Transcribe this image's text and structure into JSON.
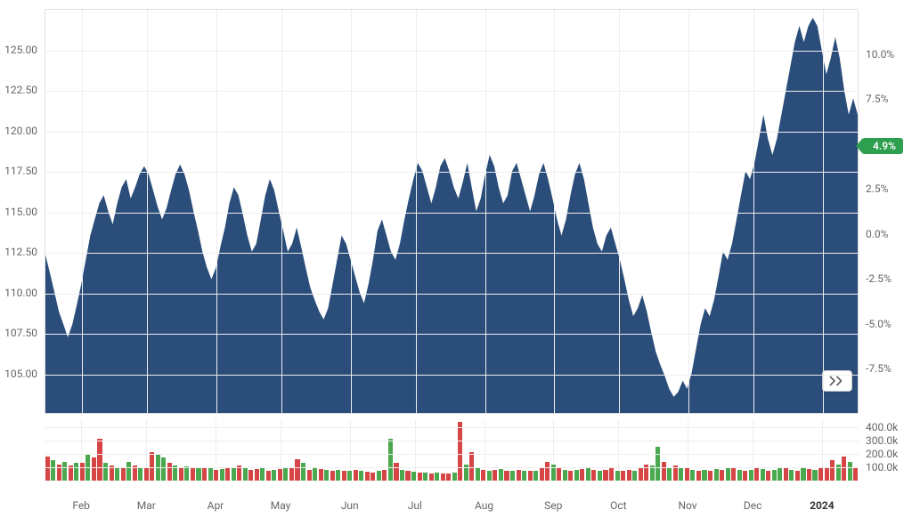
{
  "price_chart": {
    "type": "area",
    "area_color": "#2a4d7a",
    "background_color": "#ffffff",
    "grid_color": "#eeeeee",
    "border_color": "#e0e0e0",
    "y_left": {
      "min": 102.5,
      "max": 127.5,
      "ticks": [
        105.0,
        107.5,
        110.0,
        112.5,
        115.0,
        117.5,
        120.0,
        122.5,
        125.0
      ],
      "label_fontsize": 12,
      "label_color": "#666666"
    },
    "y_right": {
      "min": -10.0,
      "max": 12.5,
      "ticks": [
        -7.5,
        -5.0,
        -2.5,
        0.0,
        2.5,
        5.0,
        7.5,
        10.0
      ],
      "tick_labels": [
        "-7.5%",
        "-5.0%",
        "-2.5%",
        "0.0%",
        "2.5%",
        "5.0%",
        "7.5%",
        "10.0%"
      ],
      "label_fontsize": 12,
      "label_color": "#666666"
    },
    "x_axis": {
      "labels": [
        "Feb",
        "Mar",
        "Apr",
        "May",
        "Jun",
        "Jul",
        "Aug",
        "Sep",
        "Oct",
        "Nov",
        "Dec",
        "2024"
      ],
      "positions_pct": [
        4.5,
        12.5,
        21.0,
        29.0,
        37.5,
        45.5,
        54.0,
        62.5,
        70.5,
        79.0,
        87.0,
        95.5
      ],
      "bold_indices": [
        11
      ],
      "label_fontsize": 12,
      "label_color": "#666666"
    },
    "series": [
      112.3,
      111.2,
      110.0,
      108.8,
      108.0,
      107.2,
      108.0,
      109.2,
      110.5,
      112.0,
      113.5,
      114.5,
      115.5,
      116.0,
      115.0,
      114.2,
      115.5,
      116.5,
      117.0,
      115.8,
      116.5,
      117.3,
      117.8,
      117.3,
      116.3,
      115.3,
      114.5,
      115.2,
      116.3,
      117.3,
      117.9,
      117.3,
      116.3,
      115.0,
      113.8,
      112.5,
      111.5,
      110.8,
      111.5,
      112.8,
      114.0,
      115.5,
      116.5,
      116.0,
      114.8,
      113.5,
      112.5,
      113.0,
      114.5,
      116.0,
      117.0,
      116.3,
      115.0,
      113.8,
      112.5,
      113.0,
      114.0,
      112.8,
      111.5,
      110.3,
      109.5,
      108.8,
      108.3,
      109.0,
      110.5,
      112.0,
      113.5,
      113.0,
      112.0,
      111.0,
      110.0,
      109.3,
      110.5,
      112.0,
      113.8,
      114.5,
      113.5,
      112.5,
      112.0,
      113.0,
      114.5,
      115.8,
      117.0,
      118.0,
      117.5,
      116.5,
      115.5,
      116.5,
      117.8,
      118.3,
      117.5,
      116.5,
      115.8,
      116.8,
      118.0,
      116.5,
      115.0,
      115.8,
      117.3,
      118.5,
      117.8,
      116.5,
      115.5,
      116.0,
      117.5,
      118.0,
      117.0,
      116.0,
      115.0,
      116.0,
      117.3,
      118.0,
      117.0,
      115.8,
      114.5,
      113.5,
      114.5,
      116.0,
      117.3,
      118.0,
      117.0,
      115.5,
      114.0,
      113.0,
      112.5,
      113.5,
      114.0,
      113.0,
      112.0,
      110.8,
      109.5,
      108.5,
      109.0,
      109.8,
      108.8,
      107.5,
      106.3,
      105.5,
      104.8,
      104.0,
      103.5,
      103.8,
      104.5,
      104.0,
      105.0,
      106.5,
      108.0,
      109.0,
      108.5,
      109.5,
      111.0,
      112.5,
      112.0,
      113.0,
      114.5,
      116.0,
      117.5,
      117.0,
      118.0,
      119.5,
      121.0,
      119.5,
      118.5,
      119.5,
      121.0,
      122.5,
      124.0,
      125.5,
      126.5,
      125.5,
      126.5,
      127.0,
      126.5,
      125.0,
      123.5,
      124.5,
      125.8,
      124.5,
      122.5,
      121.0,
      122.0,
      121.0
    ],
    "current_badge": {
      "text": "4.9%",
      "bg_color": "#2e9e4f",
      "text_color": "#ffffff",
      "y_value_right": 4.9
    },
    "scroll_button": {
      "icon": "chevrons-right",
      "color": "#666666"
    }
  },
  "volume_chart": {
    "type": "bar",
    "up_color": "#4aa84e",
    "down_color": "#d64545",
    "y_axis": {
      "min": 0,
      "max": 450,
      "ticks": [
        100,
        200,
        300,
        400
      ],
      "tick_labels": [
        "100.0k",
        "200.0k",
        "300.0k",
        "400.0k"
      ],
      "label_fontsize": 12,
      "label_color": "#666666"
    },
    "bars": [
      {
        "v": 180,
        "c": "d"
      },
      {
        "v": 150,
        "c": "u"
      },
      {
        "v": 120,
        "c": "d"
      },
      {
        "v": 140,
        "c": "u"
      },
      {
        "v": 110,
        "c": "d"
      },
      {
        "v": 130,
        "c": "u"
      },
      {
        "v": 135,
        "c": "d"
      },
      {
        "v": 200,
        "c": "u"
      },
      {
        "v": 170,
        "c": "d"
      },
      {
        "v": 310,
        "c": "d"
      },
      {
        "v": 130,
        "c": "u"
      },
      {
        "v": 110,
        "c": "d"
      },
      {
        "v": 100,
        "c": "u"
      },
      {
        "v": 95,
        "c": "d"
      },
      {
        "v": 140,
        "c": "u"
      },
      {
        "v": 110,
        "c": "d"
      },
      {
        "v": 100,
        "c": "u"
      },
      {
        "v": 90,
        "c": "d"
      },
      {
        "v": 210,
        "c": "d"
      },
      {
        "v": 190,
        "c": "u"
      },
      {
        "v": 170,
        "c": "u"
      },
      {
        "v": 130,
        "c": "d"
      },
      {
        "v": 110,
        "c": "u"
      },
      {
        "v": 100,
        "c": "d"
      },
      {
        "v": 105,
        "c": "u"
      },
      {
        "v": 95,
        "c": "d"
      },
      {
        "v": 90,
        "c": "u"
      },
      {
        "v": 100,
        "c": "d"
      },
      {
        "v": 95,
        "c": "u"
      },
      {
        "v": 80,
        "c": "d"
      },
      {
        "v": 85,
        "c": "u"
      },
      {
        "v": 90,
        "c": "d"
      },
      {
        "v": 100,
        "c": "u"
      },
      {
        "v": 110,
        "c": "d"
      },
      {
        "v": 90,
        "c": "u"
      },
      {
        "v": 80,
        "c": "d"
      },
      {
        "v": 85,
        "c": "d"
      },
      {
        "v": 90,
        "c": "u"
      },
      {
        "v": 75,
        "c": "d"
      },
      {
        "v": 80,
        "c": "u"
      },
      {
        "v": 85,
        "c": "d"
      },
      {
        "v": 100,
        "c": "u"
      },
      {
        "v": 95,
        "c": "d"
      },
      {
        "v": 160,
        "c": "d"
      },
      {
        "v": 130,
        "c": "u"
      },
      {
        "v": 80,
        "c": "d"
      },
      {
        "v": 90,
        "c": "u"
      },
      {
        "v": 85,
        "c": "d"
      },
      {
        "v": 80,
        "c": "u"
      },
      {
        "v": 75,
        "c": "d"
      },
      {
        "v": 80,
        "c": "u"
      },
      {
        "v": 70,
        "c": "d"
      },
      {
        "v": 75,
        "c": "u"
      },
      {
        "v": 80,
        "c": "d"
      },
      {
        "v": 70,
        "c": "u"
      },
      {
        "v": 65,
        "c": "d"
      },
      {
        "v": 60,
        "c": "d"
      },
      {
        "v": 75,
        "c": "u"
      },
      {
        "v": 80,
        "c": "d"
      },
      {
        "v": 310,
        "c": "u"
      },
      {
        "v": 130,
        "c": "d"
      },
      {
        "v": 80,
        "c": "u"
      },
      {
        "v": 70,
        "c": "d"
      },
      {
        "v": 65,
        "c": "u"
      },
      {
        "v": 60,
        "c": "d"
      },
      {
        "v": 60,
        "c": "u"
      },
      {
        "v": 55,
        "c": "d"
      },
      {
        "v": 60,
        "c": "u"
      },
      {
        "v": 55,
        "c": "d"
      },
      {
        "v": 50,
        "c": "d"
      },
      {
        "v": 60,
        "c": "u"
      },
      {
        "v": 440,
        "c": "d"
      },
      {
        "v": 120,
        "c": "u"
      },
      {
        "v": 210,
        "c": "d"
      },
      {
        "v": 100,
        "c": "u"
      },
      {
        "v": 80,
        "c": "d"
      },
      {
        "v": 75,
        "c": "u"
      },
      {
        "v": 80,
        "c": "d"
      },
      {
        "v": 85,
        "c": "u"
      },
      {
        "v": 70,
        "c": "d"
      },
      {
        "v": 75,
        "c": "u"
      },
      {
        "v": 80,
        "c": "d"
      },
      {
        "v": 75,
        "c": "u"
      },
      {
        "v": 70,
        "c": "d"
      },
      {
        "v": 75,
        "c": "u"
      },
      {
        "v": 100,
        "c": "d"
      },
      {
        "v": 140,
        "c": "d"
      },
      {
        "v": 120,
        "c": "u"
      },
      {
        "v": 90,
        "c": "d"
      },
      {
        "v": 80,
        "c": "u"
      },
      {
        "v": 75,
        "c": "d"
      },
      {
        "v": 80,
        "c": "u"
      },
      {
        "v": 85,
        "c": "d"
      },
      {
        "v": 90,
        "c": "u"
      },
      {
        "v": 80,
        "c": "d"
      },
      {
        "v": 70,
        "c": "u"
      },
      {
        "v": 80,
        "c": "d"
      },
      {
        "v": 100,
        "c": "d"
      },
      {
        "v": 75,
        "c": "u"
      },
      {
        "v": 70,
        "c": "d"
      },
      {
        "v": 80,
        "c": "d"
      },
      {
        "v": 70,
        "c": "u"
      },
      {
        "v": 90,
        "c": "d"
      },
      {
        "v": 120,
        "c": "d"
      },
      {
        "v": 110,
        "c": "u"
      },
      {
        "v": 250,
        "c": "u"
      },
      {
        "v": 140,
        "c": "d"
      },
      {
        "v": 100,
        "c": "u"
      },
      {
        "v": 110,
        "c": "d"
      },
      {
        "v": 95,
        "c": "u"
      },
      {
        "v": 100,
        "c": "d"
      },
      {
        "v": 80,
        "c": "u"
      },
      {
        "v": 75,
        "c": "d"
      },
      {
        "v": 80,
        "c": "u"
      },
      {
        "v": 70,
        "c": "d"
      },
      {
        "v": 85,
        "c": "u"
      },
      {
        "v": 80,
        "c": "d"
      },
      {
        "v": 90,
        "c": "u"
      },
      {
        "v": 100,
        "c": "d"
      },
      {
        "v": 80,
        "c": "u"
      },
      {
        "v": 70,
        "c": "d"
      },
      {
        "v": 80,
        "c": "u"
      },
      {
        "v": 90,
        "c": "d"
      },
      {
        "v": 85,
        "c": "u"
      },
      {
        "v": 75,
        "c": "d"
      },
      {
        "v": 80,
        "c": "u"
      },
      {
        "v": 100,
        "c": "u"
      },
      {
        "v": 90,
        "c": "d"
      },
      {
        "v": 80,
        "c": "u"
      },
      {
        "v": 75,
        "c": "d"
      },
      {
        "v": 90,
        "c": "u"
      },
      {
        "v": 85,
        "c": "d"
      },
      {
        "v": 80,
        "c": "u"
      },
      {
        "v": 100,
        "c": "d"
      },
      {
        "v": 95,
        "c": "d"
      },
      {
        "v": 150,
        "c": "d"
      },
      {
        "v": 120,
        "c": "u"
      },
      {
        "v": 180,
        "c": "d"
      },
      {
        "v": 140,
        "c": "u"
      },
      {
        "v": 100,
        "c": "d"
      }
    ]
  }
}
